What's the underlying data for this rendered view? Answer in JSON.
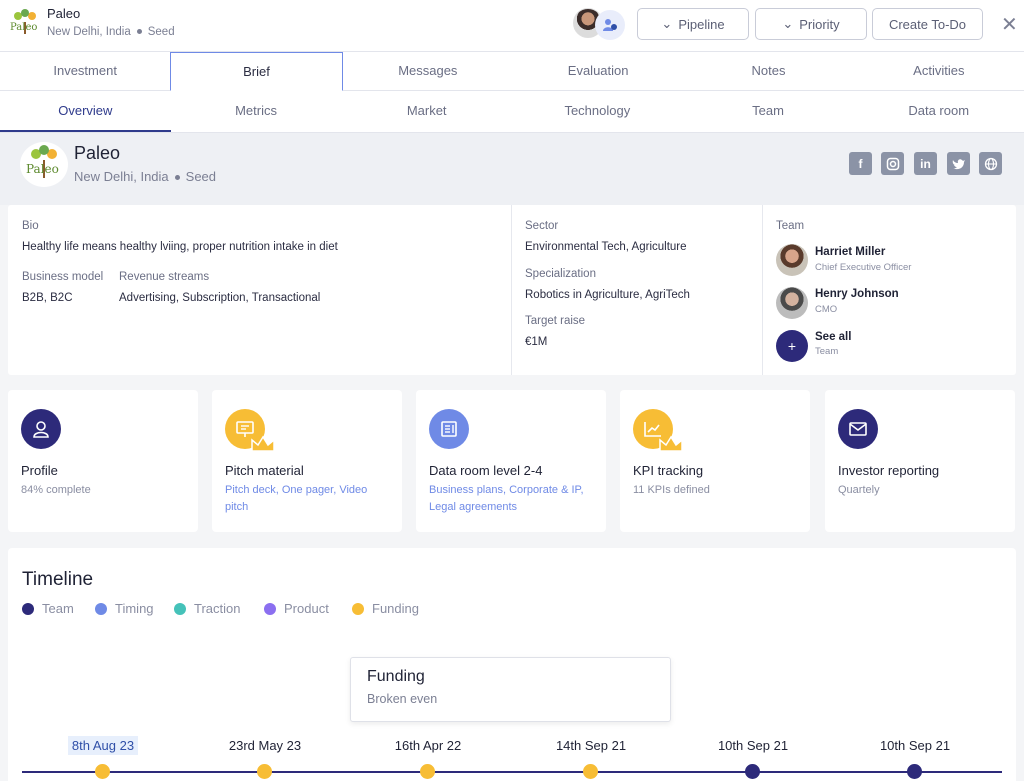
{
  "header": {
    "company_name": "Paleo",
    "location": "New Delhi, India",
    "stage": "Seed",
    "buttons": {
      "pipeline": "Pipeline",
      "priority": "Priority",
      "create_todo": "Create To-Do"
    }
  },
  "tabs_primary": [
    "Investment",
    "Brief",
    "Messages",
    "Evaluation",
    "Notes",
    "Activities"
  ],
  "tabs_secondary": [
    "Overview",
    "Metrics",
    "Market",
    "Technology",
    "Team",
    "Data room"
  ],
  "company": {
    "name": "Paleo",
    "location": "New Delhi, India",
    "stage": "Seed",
    "logo_text": "Paleo",
    "social": [
      "facebook-icon",
      "instagram-icon",
      "linkedin-icon",
      "twitter-icon",
      "globe-icon"
    ]
  },
  "info": {
    "bio_label": "Bio",
    "bio": "Healthy life means healthy lviing, proper nutrition intake in diet",
    "business_model_label": "Business model",
    "business_model": "B2B, B2C",
    "revenue_streams_label": "Revenue streams",
    "revenue_streams": "Advertising, Subscription, Transactional",
    "sector_label": "Sector",
    "sector": "Environmental Tech, Agriculture",
    "specialization_label": "Specialization",
    "specialization": "Robotics in Agriculture, AgriTech",
    "target_raise_label": "Target raise",
    "target_raise": "€1M",
    "team_label": "Team",
    "team": [
      {
        "name": "Harriet Miller",
        "role": "Chief Executive Officer"
      },
      {
        "name": "Henry Johnson",
        "role": "CMO"
      }
    ],
    "see_all": "See all",
    "see_all_sub": "Team"
  },
  "cards": [
    {
      "title": "Profile",
      "sub": "84% complete"
    },
    {
      "title": "Pitch material",
      "sub": "Pitch deck, One pager, Video pitch"
    },
    {
      "title": "Data room level 2-4",
      "sub": "Business plans, Corporate & IP, Legal agreements"
    },
    {
      "title": "KPI tracking",
      "sub": "11 KPIs defined"
    },
    {
      "title": "Investor reporting",
      "sub": "Quartely"
    }
  ],
  "timeline": {
    "title": "Timeline",
    "legend": [
      {
        "label": "Team",
        "color": "#2d2a7a"
      },
      {
        "label": "Timing",
        "color": "#6f8ae6"
      },
      {
        "label": "Traction",
        "color": "#45c2b9"
      },
      {
        "label": "Product",
        "color": "#8b6ff0"
      },
      {
        "label": "Funding",
        "color": "#f7bd35"
      }
    ],
    "popup": {
      "title": "Funding",
      "sub": "Broken even"
    },
    "events": [
      {
        "date": "8th Aug 23",
        "color": "#f7bd35"
      },
      {
        "date": "23rd May 23",
        "color": "#f7bd35"
      },
      {
        "date": "16th Apr 22",
        "color": "#f7bd35"
      },
      {
        "date": "14th Sep 21",
        "color": "#f7bd35"
      },
      {
        "date": "10th Sep 21",
        "color": "#2d2a7a"
      },
      {
        "date": "10th Sep 21",
        "color": "#2d2a7a"
      }
    ]
  }
}
